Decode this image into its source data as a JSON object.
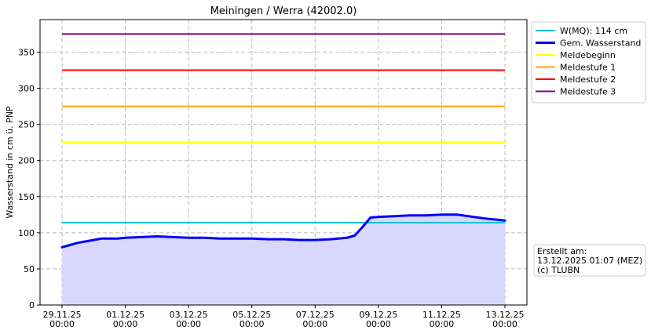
{
  "chart_data": {
    "type": "line",
    "title": "Meiningen / Werra (42002.0)",
    "ylabel": "Wasserstand in cm ü. PNP",
    "xlabel": "",
    "x_range": [
      "2025-11-29 00:00",
      "2025-12-13 00:00"
    ],
    "ylim": [
      0,
      395
    ],
    "grid": true,
    "legend_position": "outside-right-top",
    "x_ticks": [
      {
        "date": "2025-11-29",
        "line1": "29.11.25",
        "line2": "00:00"
      },
      {
        "date": "2025-12-01",
        "line1": "01.12.25",
        "line2": "00:00"
      },
      {
        "date": "2025-12-03",
        "line1": "03.12.25",
        "line2": "00:00"
      },
      {
        "date": "2025-12-05",
        "line1": "05.12.25",
        "line2": "00:00"
      },
      {
        "date": "2025-12-07",
        "line1": "07.12.25",
        "line2": "00:00"
      },
      {
        "date": "2025-12-09",
        "line1": "09.12.25",
        "line2": "00:00"
      },
      {
        "date": "2025-12-11",
        "line1": "11.12.25",
        "line2": "00:00"
      },
      {
        "date": "2025-12-13",
        "line1": "13.12.25",
        "line2": "00:00"
      }
    ],
    "y_ticks": [
      0,
      50,
      100,
      150,
      200,
      250,
      300,
      350
    ],
    "thresholds": [
      {
        "name": "W(MQ): 114 cm",
        "value": 114,
        "color": "#17becf"
      },
      {
        "name": "Meldebeginn",
        "value": 225,
        "color": "#ffff00"
      },
      {
        "name": "Meldestufe 1",
        "value": 275,
        "color": "#ffa500"
      },
      {
        "name": "Meldestufe 2",
        "value": 325,
        "color": "#ff0000"
      },
      {
        "name": "Meldestufe 3",
        "value": 375,
        "color": "#800080"
      }
    ],
    "series": [
      {
        "name": "Gem. Wasserstand",
        "color": "#0000ff",
        "fill": "#d8d8ff",
        "points": [
          [
            "2025-11-29 00:00",
            80
          ],
          [
            "2025-11-29 06:00",
            83
          ],
          [
            "2025-11-29 12:00",
            86
          ],
          [
            "2025-11-29 18:00",
            88
          ],
          [
            "2025-11-30 00:00",
            90
          ],
          [
            "2025-11-30 06:00",
            92
          ],
          [
            "2025-11-30 12:00",
            92
          ],
          [
            "2025-11-30 18:00",
            92
          ],
          [
            "2025-12-01 00:00",
            93
          ],
          [
            "2025-12-01 12:00",
            94
          ],
          [
            "2025-12-02 00:00",
            95
          ],
          [
            "2025-12-02 12:00",
            94
          ],
          [
            "2025-12-03 00:00",
            93
          ],
          [
            "2025-12-03 12:00",
            93
          ],
          [
            "2025-12-04 00:00",
            92
          ],
          [
            "2025-12-04 12:00",
            92
          ],
          [
            "2025-12-05 00:00",
            92
          ],
          [
            "2025-12-05 12:00",
            91
          ],
          [
            "2025-12-06 00:00",
            91
          ],
          [
            "2025-12-06 12:00",
            90
          ],
          [
            "2025-12-07 00:00",
            90
          ],
          [
            "2025-12-07 12:00",
            91
          ],
          [
            "2025-12-08 00:00",
            93
          ],
          [
            "2025-12-08 06:00",
            96
          ],
          [
            "2025-12-08 12:00",
            108
          ],
          [
            "2025-12-08 18:00",
            121
          ],
          [
            "2025-12-09 00:00",
            122
          ],
          [
            "2025-12-09 12:00",
            123
          ],
          [
            "2025-12-10 00:00",
            124
          ],
          [
            "2025-12-10 12:00",
            124
          ],
          [
            "2025-12-11 00:00",
            125
          ],
          [
            "2025-12-11 12:00",
            125
          ],
          [
            "2025-12-12 00:00",
            122
          ],
          [
            "2025-12-12 12:00",
            119
          ],
          [
            "2025-12-13 00:00",
            117
          ]
        ]
      }
    ],
    "legend": [
      {
        "label": "W(MQ): 114 cm",
        "color": "#17becf",
        "width": 2
      },
      {
        "label": "Gem. Wasserstand",
        "color": "#0000ff",
        "width": 3
      },
      {
        "label": "Meldebeginn",
        "color": "#ffff00",
        "width": 2
      },
      {
        "label": "Meldestufe 1",
        "color": "#ffa500",
        "width": 2
      },
      {
        "label": "Meldestufe 2",
        "color": "#ff0000",
        "width": 2
      },
      {
        "label": "Meldestufe 3",
        "color": "#800080",
        "width": 2
      }
    ],
    "annotation": [
      "Erstellt am:",
      "13.12.2025 01:07 (MEZ)",
      "(c) TLUBN"
    ]
  }
}
